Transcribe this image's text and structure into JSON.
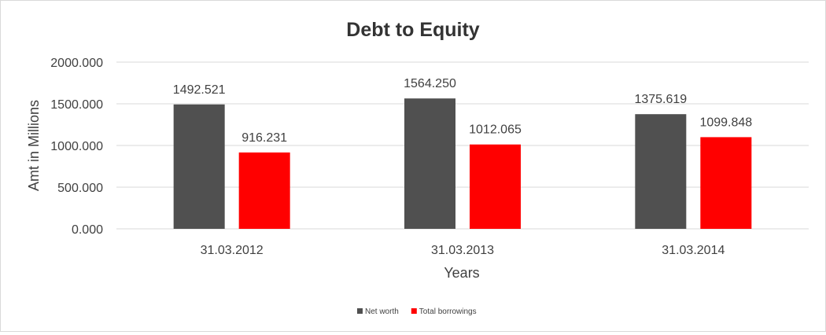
{
  "chart_data": {
    "type": "bar",
    "title": "Debt to Equity",
    "xlabel": "Years",
    "ylabel": "Amt in Millions",
    "categories": [
      "31.03.2012",
      "31.03.2013",
      "31.03.2014"
    ],
    "series": [
      {
        "name": "Net worth",
        "values": [
          1492.521,
          1564.25,
          1375.619
        ],
        "value_labels": [
          "1492.521",
          "1564.250",
          "1375.619"
        ],
        "color": "#505050"
      },
      {
        "name": "Total borrowings",
        "values": [
          916.231,
          1012.065,
          1099.848
        ],
        "value_labels": [
          "916.231",
          "1012.065",
          "1099.848"
        ],
        "color": "#ff0000"
      }
    ],
    "ylim": [
      0,
      2000
    ],
    "yticks": [
      0,
      500,
      1000,
      1500,
      2000
    ],
    "ytick_labels": [
      "0.000",
      "500.000",
      "1000.000",
      "1500.000",
      "2000.000"
    ],
    "grid": true,
    "legend_position": "bottom"
  }
}
